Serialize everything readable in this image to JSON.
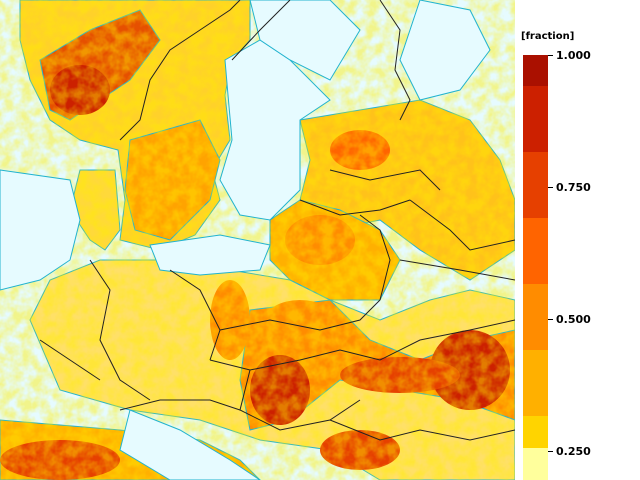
{
  "colors": {
    "sea": "#e6fbff",
    "coast": "#21b3cf",
    "border": "#222222",
    "scale": [
      "#ffff9c",
      "#ffd400",
      "#ffb000",
      "#ff8c00",
      "#ff6400",
      "#e64000",
      "#cc2000",
      "#aa1000"
    ]
  },
  "legend": {
    "title": "[fraction]",
    "ticks": [
      "1.000",
      "0.750",
      "0.500",
      "0.250"
    ]
  }
}
